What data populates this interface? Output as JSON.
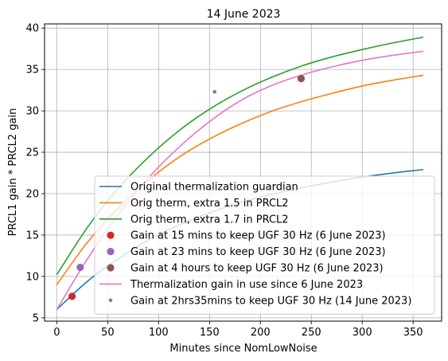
{
  "chart_data": {
    "type": "line",
    "title": "14 June 2023",
    "xlabel": "Minutes since NomLowNoise",
    "ylabel": "PRCL1 gain * PRCL2 gain",
    "xlim": [
      -12,
      378
    ],
    "ylim": [
      4.6,
      40.5
    ],
    "xticks": [
      0,
      50,
      100,
      150,
      200,
      250,
      300,
      350
    ],
    "yticks": [
      5,
      10,
      15,
      20,
      25,
      30,
      35,
      40
    ],
    "grid": true,
    "legend_position": "lower right",
    "curve_x_range": [
      0,
      360
    ],
    "series": [
      {
        "name": "Original thermalization guardian",
        "kind": "line",
        "color": "#1f77b4",
        "x": [
          0,
          30,
          60,
          90,
          120,
          150,
          180,
          210,
          240,
          270,
          300,
          330,
          360
        ],
        "y": [
          6.0,
          9.4,
          12.1,
          14.4,
          16.2,
          17.7,
          18.9,
          19.9,
          20.7,
          21.4,
          22.0,
          22.5,
          22.9
        ]
      },
      {
        "name": "Orig therm, extra 1.5 in PRCL2",
        "kind": "line",
        "color": "#ff7f0e",
        "x": [
          0,
          30,
          60,
          90,
          120,
          150,
          180,
          210,
          240,
          270,
          300,
          330,
          360
        ],
        "y": [
          9.0,
          14.1,
          18.2,
          21.6,
          24.4,
          26.6,
          28.4,
          29.9,
          31.1,
          32.1,
          33.0,
          33.7,
          34.3
        ]
      },
      {
        "name": "Orig therm, extra 1.7 in PRCL2",
        "kind": "line",
        "color": "#2ca02c",
        "x": [
          0,
          30,
          60,
          90,
          120,
          150,
          180,
          210,
          240,
          270,
          300,
          330,
          360
        ],
        "y": [
          10.2,
          15.9,
          20.6,
          24.4,
          27.6,
          30.2,
          32.3,
          34.0,
          35.4,
          36.5,
          37.4,
          38.2,
          38.9
        ]
      },
      {
        "name": "Gain at 15 mins to keep UGF 30 Hz (6 June 2023)",
        "kind": "point",
        "color": "#d62728",
        "x": [
          15
        ],
        "y": [
          7.6
        ]
      },
      {
        "name": "Gain at 23 mins to keep UGF 30 Hz (6 June 2023)",
        "kind": "point",
        "color": "#9467bd",
        "x": [
          23
        ],
        "y": [
          11.1
        ]
      },
      {
        "name": "Gain at 4 hours to keep UGF 30 Hz (6 June 2023)",
        "kind": "point",
        "color": "#8c564b",
        "x": [
          240
        ],
        "y": [
          33.9
        ]
      },
      {
        "name": "Thermalization gain in use since 6 June 2023",
        "kind": "line",
        "color": "#e377c2",
        "x": [
          0,
          30,
          60,
          90,
          120,
          150,
          180,
          210,
          240,
          270,
          300,
          330,
          360
        ],
        "y": [
          6.0,
          12.1,
          17.4,
          21.9,
          25.6,
          28.7,
          31.2,
          33.0,
          34.3,
          35.3,
          36.1,
          36.7,
          37.2
        ]
      },
      {
        "name": "Gain at 2hrs35mins to keep UGF 30 Hz (14 June 2023)",
        "kind": "point-small",
        "color": "#7f7f7f",
        "x": [
          155
        ],
        "y": [
          32.3
        ]
      }
    ]
  }
}
